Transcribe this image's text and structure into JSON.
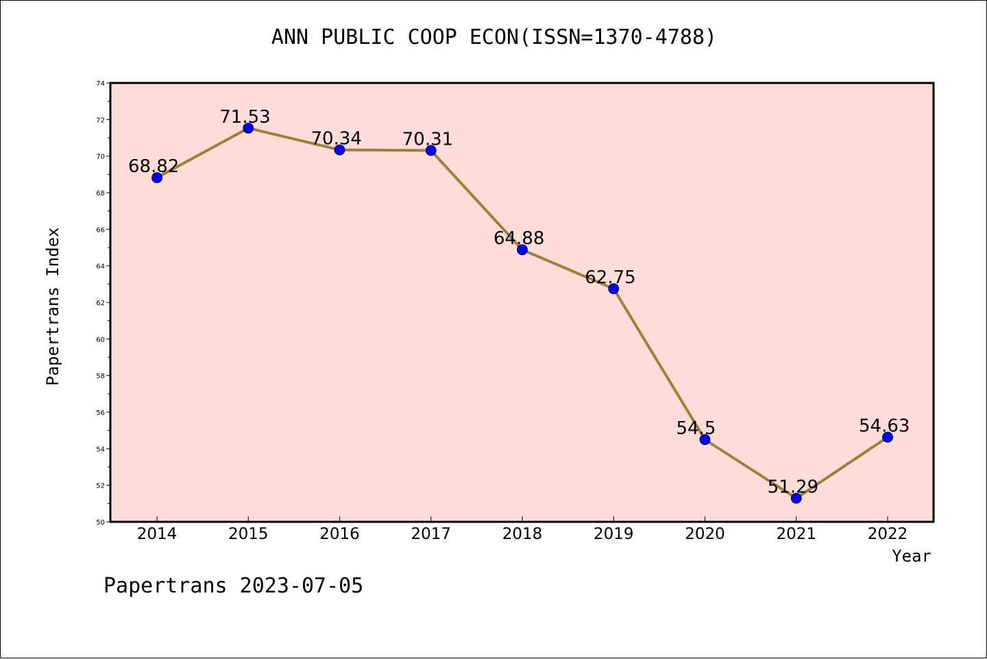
{
  "chart_data": {
    "type": "line",
    "title": "ANN PUBLIC COOP ECON(ISSN=1370-4788)",
    "xlabel": "Year",
    "ylabel": "Papertrans Index",
    "categories": [
      "2014",
      "2015",
      "2016",
      "2017",
      "2018",
      "2019",
      "2020",
      "2021",
      "2022"
    ],
    "series": [
      {
        "values": [
          68.82,
          71.53,
          70.34,
          70.31,
          64.88,
          62.75,
          54.5,
          51.29,
          54.63
        ],
        "labels": [
          "68.82",
          "71.53",
          "70.34",
          "70.31",
          "64.88",
          "62.75",
          "54.5",
          "51.29",
          "54.63"
        ],
        "line_color": "#9b8237",
        "marker_color": "#0000ff"
      }
    ],
    "ylim": [
      50,
      74
    ],
    "yticks": [
      "50",
      "52",
      "54",
      "56",
      "58",
      "60",
      "62",
      "64",
      "66",
      "68",
      "70",
      "72",
      "74"
    ],
    "plot_background": "#fddcd9",
    "grid": false,
    "legend": "none"
  },
  "footer": "Papertrans 2023-07-05"
}
